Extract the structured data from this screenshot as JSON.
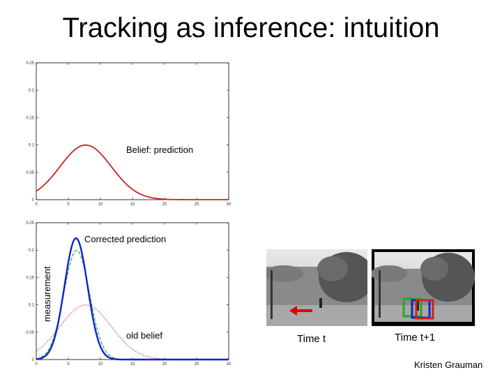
{
  "slide": {
    "title": "Tracking as inference: intuition",
    "credit": "Kristen Grauman"
  },
  "photos": {
    "left_caption": "Time t",
    "right_caption": "Time t+1"
  },
  "colors": {
    "belief": "#cc2222",
    "measurement": "#22aa22",
    "corrected": "#1122cc",
    "arrow": "#dd0000"
  },
  "chart_data": [
    {
      "type": "line",
      "x_ticks": [
        "0",
        "5",
        "10",
        "15",
        "20",
        "25",
        "30"
      ],
      "y_ticks": [
        "0",
        "0.05",
        "0.1",
        "0.15",
        "0.2",
        "0.25"
      ],
      "xlim": [
        0,
        30
      ],
      "ylim": [
        0,
        0.25
      ],
      "annotations": [
        "Belief: prediction"
      ],
      "series": [
        {
          "color": "#cc2222",
          "style": "solid",
          "gaussian": {
            "mean": 7.7,
            "sd": 4.0
          }
        }
      ]
    },
    {
      "type": "line",
      "x_ticks": [
        "0",
        "5",
        "10",
        "15",
        "20",
        "25",
        "30"
      ],
      "y_ticks": [
        "0",
        "0.05",
        "0.1",
        "0.15",
        "0.2",
        "0.25"
      ],
      "xlim": [
        0,
        30
      ],
      "ylim": [
        0,
        0.25
      ],
      "ylabel": "measurement",
      "annotations": [
        "Corrected prediction",
        "old belief"
      ],
      "series": [
        {
          "color": "#cc2222",
          "style": "dotted",
          "gaussian": {
            "mean": 7.7,
            "sd": 4.0
          }
        },
        {
          "color": "#22aa22",
          "style": "dashed",
          "gaussian": {
            "mean": 6.3,
            "sd": 2.0
          }
        },
        {
          "color": "#1122cc",
          "style": "solid",
          "gaussian": {
            "mean": 6.2,
            "sd": 1.8
          }
        }
      ]
    }
  ]
}
